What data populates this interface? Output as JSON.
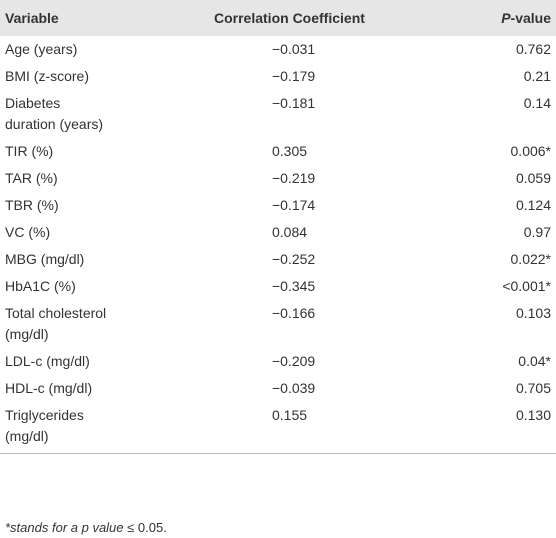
{
  "header": {
    "variable": "Variable",
    "correlation": "Correlation Coefficient",
    "p_value": {
      "italic": "P",
      "rest": "-value"
    }
  },
  "table": {
    "rows": [
      [
        "Age (years)",
        "−0.031",
        "0.762"
      ],
      [
        "BMI (z-score)",
        "−0.179",
        "0.21"
      ],
      [
        "Diabetes duration (years)",
        "−0.181",
        "0.14"
      ],
      [
        "TIR (%)",
        "0.305",
        "0.006*"
      ],
      [
        "TAR (%)",
        "−0.219",
        "0.059"
      ],
      [
        "TBR (%)",
        "−0.174",
        "0.124"
      ],
      [
        "VC (%)",
        "0.084",
        "0.97"
      ],
      [
        "MBG (mg/dl)",
        "−0.252",
        "0.022*"
      ],
      [
        "HbA1C (%)",
        "−0.345",
        "<0.001*"
      ],
      [
        "Total cholesterol (mg/dl)",
        "−0.166",
        "0.103"
      ],
      [
        "LDL-c (mg/dl)",
        "−0.209",
        "0.04*"
      ],
      [
        "HDL-c (mg/dl)",
        "−0.039",
        "0.705"
      ],
      [
        "Triglycerides (mg/dl)",
        "0.155",
        "0.130"
      ]
    ]
  },
  "footnote": {
    "italic": "*stands for a p value ≤",
    "rest": "0.05."
  }
}
